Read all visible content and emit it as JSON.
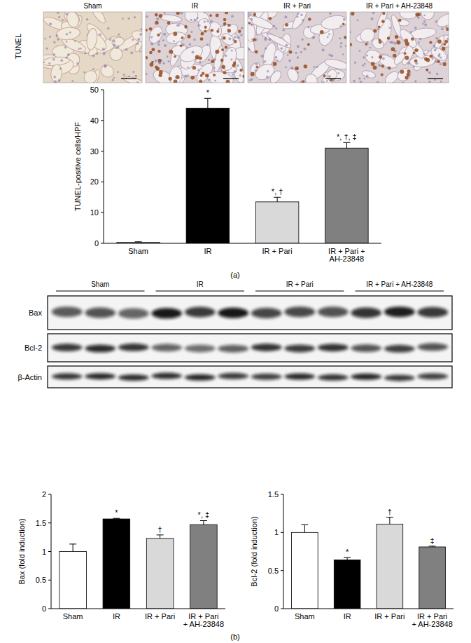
{
  "micrographs": {
    "row_label": "TUNEL",
    "panels": [
      "Sham",
      "IR",
      "IR + Pari",
      "IR + Pari + AH-23848"
    ]
  },
  "blot": {
    "groups": [
      "Sham",
      "IR",
      "IR + Pari",
      "IR + Pari + AH-23848"
    ],
    "rows": [
      "Bax",
      "Bcl-2",
      "β-Actin"
    ]
  },
  "panel_labels": [
    "(a)",
    "(b)"
  ],
  "chart_data": [
    {
      "type": "bar",
      "ylabel": "TUNEL-positive cells/HPF",
      "categories": [
        "Sham",
        "IR",
        "IR + Pari",
        "IR + Pari + AH-23848"
      ],
      "values": [
        0.3,
        44,
        13.5,
        31
      ],
      "error": [
        0.2,
        3.2,
        1.5,
        1.8
      ],
      "colors": [
        "#ffffff",
        "#000000",
        "#d9d9d9",
        "#808080"
      ],
      "ylim": [
        0,
        50
      ],
      "yticks": [
        0,
        10,
        20,
        30,
        40,
        50
      ],
      "annotations": [
        null,
        "*",
        "*, †",
        "*, †, ‡"
      ]
    },
    {
      "type": "bar",
      "ylabel": "Bax (fold induction)",
      "categories": [
        "Sham",
        "IR",
        "IR + Pari",
        "IR + Pari + AH-23848"
      ],
      "values": [
        1.0,
        1.57,
        1.23,
        1.47
      ],
      "error": [
        0.13,
        0.01,
        0.06,
        0.07
      ],
      "colors": [
        "#ffffff",
        "#000000",
        "#d9d9d9",
        "#808080"
      ],
      "ylim": [
        0,
        2
      ],
      "yticks": [
        0,
        {
          "value": 0.5,
          "label": "0.5"
        },
        1,
        {
          "value": 1.5,
          "label": "1.5"
        },
        2
      ],
      "annotations": [
        null,
        "*",
        "†",
        "*, ‡"
      ]
    },
    {
      "type": "bar",
      "ylabel": "Bcl-2 (fold induction)",
      "categories": [
        "Sham",
        "IR",
        "IR + Pari",
        "IR + Pari + AH-23848"
      ],
      "values": [
        1.0,
        0.64,
        1.11,
        0.81
      ],
      "error": [
        0.1,
        0.03,
        0.09,
        0.01
      ],
      "colors": [
        "#ffffff",
        "#000000",
        "#d9d9d9",
        "#808080"
      ],
      "ylim": [
        0,
        1.5
      ],
      "yticks": [
        0,
        {
          "value": 0.5,
          "label": "0.5"
        },
        1,
        {
          "value": 1.5,
          "label": "1.5"
        }
      ],
      "annotations": [
        null,
        "*",
        "†",
        "‡"
      ]
    }
  ]
}
